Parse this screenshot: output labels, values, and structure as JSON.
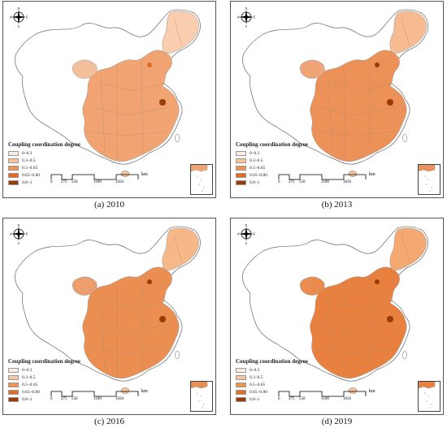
{
  "legend": {
    "title": "Coupling coordination degree",
    "items": [
      {
        "label": "0–0.3",
        "color": "#fdece0"
      },
      {
        "label": "0.3–0.5",
        "color": "#f8c39d"
      },
      {
        "label": "0.5–0.65",
        "color": "#f1934f"
      },
      {
        "label": "0.65–0.80",
        "color": "#e36a1f"
      },
      {
        "label": "0.8–1",
        "color": "#9a3a06"
      }
    ]
  },
  "scale_bar": {
    "ticks": [
      "0",
      "275",
      "550",
      "1100",
      "1650"
    ],
    "unit": "km"
  },
  "compass": {
    "n": "N",
    "s": "S",
    "e": "E",
    "w": "W"
  },
  "panels": [
    {
      "caption": "(a) 2010",
      "fill_level": 0.35
    },
    {
      "caption": "(b) 2013",
      "fill_level": 0.55
    },
    {
      "caption": "(c) 2016",
      "fill_level": 0.6
    },
    {
      "caption": "(d) 2019",
      "fill_level": 0.75
    }
  ]
}
